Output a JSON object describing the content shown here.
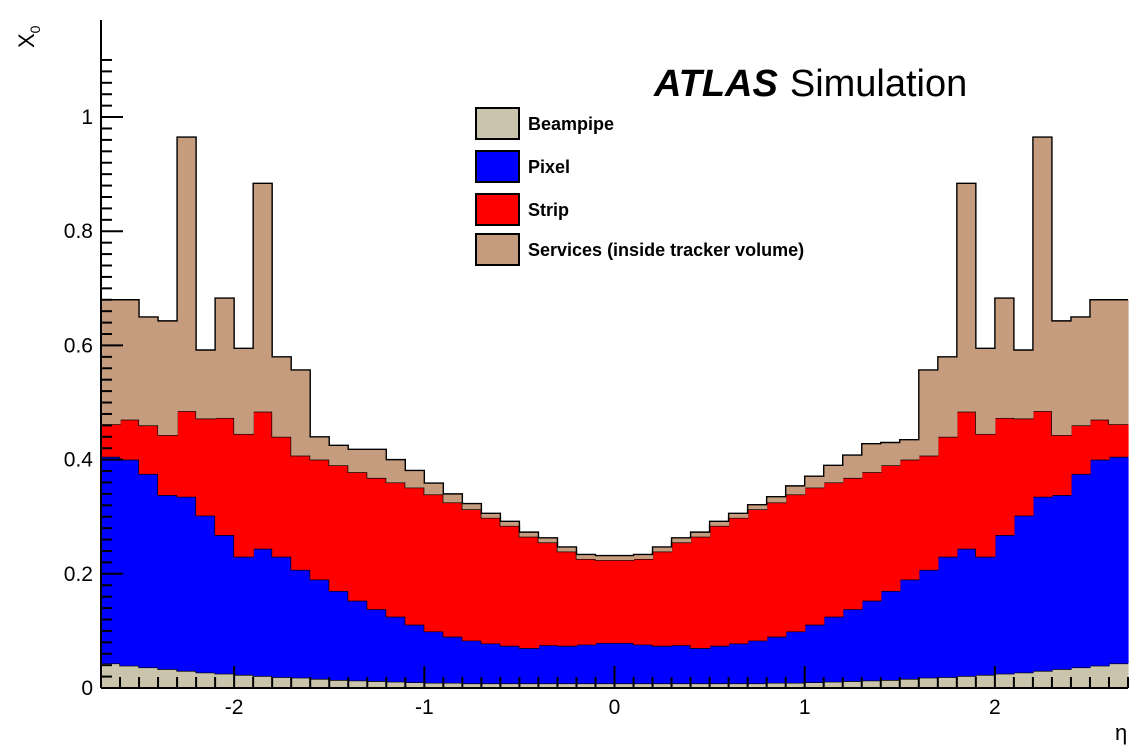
{
  "chart_data": {
    "type": "area",
    "stacked": true,
    "step": true,
    "title": "",
    "annotation": {
      "bold": "ATLAS",
      "normal": "Simulation"
    },
    "xlabel": "η",
    "ylabel": "X",
    "ylabel_sub": "0",
    "xlim": [
      -2.7,
      2.7
    ],
    "ylim": [
      0,
      1.17
    ],
    "xticks": [
      -2,
      -1,
      0,
      1,
      2
    ],
    "xtick_labels": [
      "-2",
      "-1",
      "0",
      "1",
      "2"
    ],
    "yticks": [
      0,
      0.2,
      0.4,
      0.6,
      0.8,
      1
    ],
    "ytick_labels": [
      "0",
      "0.2",
      "0.4",
      "0.6",
      "0.8",
      "1"
    ],
    "legend_position": "top-center",
    "x": [
      -2.65,
      -2.55,
      -2.45,
      -2.35,
      -2.25,
      -2.15,
      -2.05,
      -1.95,
      -1.85,
      -1.75,
      -1.65,
      -1.55,
      -1.45,
      -1.35,
      -1.25,
      -1.15,
      -1.05,
      -0.95,
      -0.85,
      -0.75,
      -0.65,
      -0.55,
      -0.45,
      -0.35,
      -0.25,
      -0.15,
      -0.05,
      0.05,
      0.15,
      0.25,
      0.35,
      0.45,
      0.55,
      0.65,
      0.75,
      0.85,
      0.95,
      1.05,
      1.15,
      1.25,
      1.35,
      1.45,
      1.55,
      1.65,
      1.75,
      1.85,
      1.95,
      2.05,
      2.15,
      2.25,
      2.35,
      2.45,
      2.55,
      2.65
    ],
    "series": [
      {
        "name": "Beampipe",
        "color": "#c9c4ab",
        "values": [
          0.043,
          0.039,
          0.036,
          0.033,
          0.03,
          0.027,
          0.025,
          0.023,
          0.021,
          0.019,
          0.018,
          0.016,
          0.014,
          0.013,
          0.012,
          0.011,
          0.01,
          0.009,
          0.009,
          0.008,
          0.008,
          0.008,
          0.008,
          0.008,
          0.008,
          0.008,
          0.008,
          0.008,
          0.008,
          0.008,
          0.008,
          0.008,
          0.008,
          0.008,
          0.008,
          0.009,
          0.009,
          0.01,
          0.011,
          0.012,
          0.013,
          0.014,
          0.016,
          0.018,
          0.019,
          0.021,
          0.023,
          0.025,
          0.027,
          0.03,
          0.033,
          0.036,
          0.039,
          0.043
        ]
      },
      {
        "name": "Pixel",
        "color": "#0000ff",
        "values": [
          0.362,
          0.361,
          0.339,
          0.305,
          0.305,
          0.275,
          0.243,
          0.207,
          0.223,
          0.211,
          0.189,
          0.174,
          0.156,
          0.14,
          0.126,
          0.114,
          0.101,
          0.09,
          0.081,
          0.075,
          0.07,
          0.066,
          0.062,
          0.067,
          0.066,
          0.068,
          0.071,
          0.071,
          0.068,
          0.066,
          0.067,
          0.062,
          0.066,
          0.07,
          0.075,
          0.081,
          0.09,
          0.101,
          0.114,
          0.126,
          0.14,
          0.156,
          0.174,
          0.189,
          0.211,
          0.223,
          0.207,
          0.243,
          0.275,
          0.305,
          0.305,
          0.339,
          0.361,
          0.362
        ]
      },
      {
        "name": "Strip",
        "color": "#ff0000",
        "values": [
          0.057,
          0.07,
          0.085,
          0.105,
          0.15,
          0.17,
          0.205,
          0.215,
          0.24,
          0.21,
          0.2,
          0.21,
          0.22,
          0.225,
          0.23,
          0.235,
          0.24,
          0.24,
          0.235,
          0.23,
          0.22,
          0.21,
          0.195,
          0.18,
          0.165,
          0.15,
          0.145,
          0.145,
          0.15,
          0.165,
          0.18,
          0.195,
          0.21,
          0.22,
          0.23,
          0.235,
          0.24,
          0.24,
          0.235,
          0.23,
          0.225,
          0.22,
          0.21,
          0.2,
          0.21,
          0.24,
          0.215,
          0.205,
          0.17,
          0.15,
          0.105,
          0.085,
          0.07,
          0.057
        ]
      },
      {
        "name": "Services (inside tracker volume)",
        "color": "#c69c7e",
        "values": [
          0.218,
          0.21,
          0.19,
          0.2,
          0.48,
          0.12,
          0.21,
          0.15,
          0.4,
          0.14,
          0.15,
          0.04,
          0.035,
          0.04,
          0.05,
          0.04,
          0.03,
          0.02,
          0.015,
          0.01,
          0.008,
          0.008,
          0.008,
          0.008,
          0.008,
          0.008,
          0.008,
          0.008,
          0.008,
          0.008,
          0.008,
          0.008,
          0.008,
          0.008,
          0.008,
          0.01,
          0.015,
          0.02,
          0.03,
          0.04,
          0.05,
          0.04,
          0.035,
          0.15,
          0.14,
          0.4,
          0.15,
          0.21,
          0.12,
          0.48,
          0.2,
          0.19,
          0.21,
          0.218
        ]
      }
    ]
  }
}
